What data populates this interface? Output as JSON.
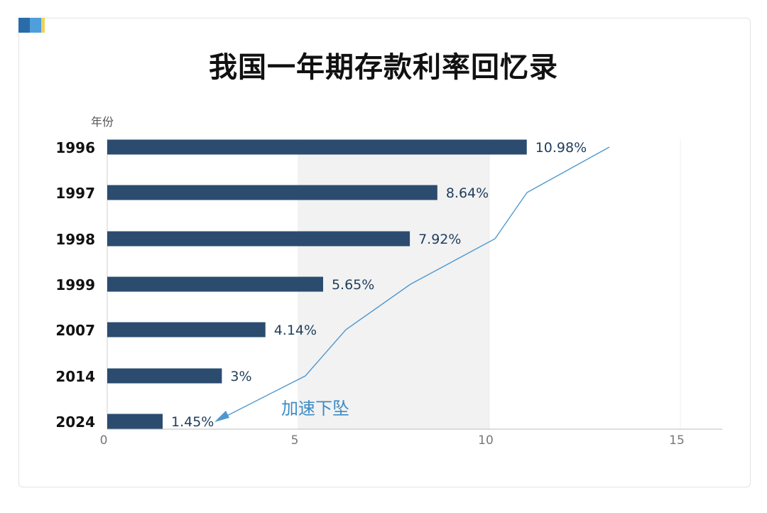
{
  "title": "我国一年期存款利率回忆录",
  "colors": {
    "bar": "#2b4c6f",
    "shade": "#f2f2f2",
    "arrow": "#4f98cf",
    "accent": [
      "#2a6ca8",
      "#4f9fdc",
      "#f0d25a"
    ]
  },
  "chart_data": {
    "type": "bar",
    "orientation": "horizontal",
    "title": "我国一年期存款利率回忆录",
    "ylabel": "年份",
    "xlabel": "",
    "categories": [
      "1996",
      "1997",
      "1998",
      "1999",
      "2007",
      "2014",
      "2024"
    ],
    "values": [
      10.98,
      8.64,
      7.92,
      5.65,
      4.14,
      3,
      1.45
    ],
    "value_labels": [
      "10.98%",
      "8.64%",
      "7.92%",
      "5.65%",
      "4.14%",
      "3%",
      "1.45%"
    ],
    "xlim": [
      0,
      16
    ],
    "xticks": [
      0,
      5,
      10,
      15
    ],
    "shaded_band": [
      5,
      10
    ],
    "annotation": "加速下坠"
  }
}
